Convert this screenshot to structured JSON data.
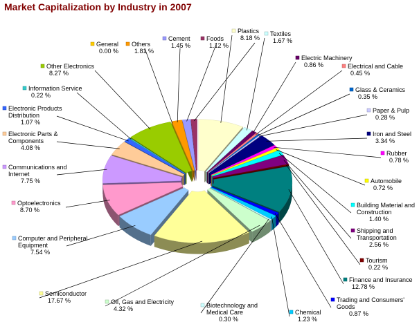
{
  "chart_data": {
    "type": "pie",
    "title": "Market Capitalization by Industry in 2007",
    "title_color": "#800000",
    "three_d": true,
    "legend": "none",
    "slices": [
      {
        "name": [
          "Plastics"
        ],
        "value": "8.18 %",
        "pct": 8.18,
        "color": "#ffffcc"
      },
      {
        "name": [
          "Textiles"
        ],
        "value": "1.67 %",
        "pct": 1.67,
        "color": "#ccffff"
      },
      {
        "name": [
          "Electric Machinery"
        ],
        "value": "0.86 %",
        "pct": 0.86,
        "color": "#660066"
      },
      {
        "name": [
          "Electrical and Cable"
        ],
        "value": "0.45 %",
        "pct": 0.45,
        "color": "#ff8080"
      },
      {
        "name": [
          "Glass & Ceramics"
        ],
        "value": "0.35 %",
        "pct": 0.35,
        "color": "#0066cc"
      },
      {
        "name": [
          "Paper & Pulp"
        ],
        "value": "0.28 %",
        "pct": 0.28,
        "color": "#ccccff"
      },
      {
        "name": [
          "Iron and Steel"
        ],
        "value": "3.34 %",
        "pct": 3.34,
        "color": "#000080"
      },
      {
        "name": [
          "Rubber"
        ],
        "value": "0.78 %",
        "pct": 0.78,
        "color": "#ff00ff"
      },
      {
        "name": [
          "Automobile"
        ],
        "value": "0.72 %",
        "pct": 0.72,
        "color": "#ffff00"
      },
      {
        "name": [
          "Building Material and",
          "Construction"
        ],
        "value": "1.40 %",
        "pct": 1.4,
        "color": "#00ffff"
      },
      {
        "name": [
          "Shipping and",
          "Transportation"
        ],
        "value": "2.56 %",
        "pct": 2.56,
        "color": "#800080"
      },
      {
        "name": [
          "Tourism"
        ],
        "value": "0.22 %",
        "pct": 0.22,
        "color": "#800000"
      },
      {
        "name": [
          "Finance and Insurance"
        ],
        "value": "12.78 %",
        "pct": 12.78,
        "color": "#008080"
      },
      {
        "name": [
          "Trading and Consumers'",
          "Goods"
        ],
        "value": "0.87 %",
        "pct": 0.87,
        "color": "#0000ff"
      },
      {
        "name": [
          "Chemical"
        ],
        "value": "1.23 %",
        "pct": 1.23,
        "color": "#00ccff"
      },
      {
        "name": [
          "Biotechnology and",
          "Medical Care"
        ],
        "value": "0.30 %",
        "pct": 0.3,
        "color": "#ccffff"
      },
      {
        "name": [
          "Oil, Gas and Electricity"
        ],
        "value": "4.32 %",
        "pct": 4.32,
        "color": "#ccffcc"
      },
      {
        "name": [
          "Semiconductor"
        ],
        "value": "17.67 %",
        "pct": 17.67,
        "color": "#ffff99"
      },
      {
        "name": [
          "Computer and Peripheral",
          "Equipment"
        ],
        "value": "7.54 %",
        "pct": 7.54,
        "color": "#99ccff"
      },
      {
        "name": [
          "Optoelectronics"
        ],
        "value": "8.70 %",
        "pct": 8.7,
        "color": "#ff99cc"
      },
      {
        "name": [
          "Communications and",
          "Internet"
        ],
        "value": "7.75 %",
        "pct": 7.75,
        "color": "#cc99ff"
      },
      {
        "name": [
          "Electronic Parts &",
          "Components"
        ],
        "value": "4.08 %",
        "pct": 4.08,
        "color": "#ffcc99"
      },
      {
        "name": [
          "Electronic Products",
          "Distribution"
        ],
        "value": "1.07 %",
        "pct": 1.07,
        "color": "#3366ff"
      },
      {
        "name": [
          "Information Service"
        ],
        "value": "0.22 %",
        "pct": 0.22,
        "color": "#33cccc"
      },
      {
        "name": [
          "Other Electronics"
        ],
        "value": "8.27 %",
        "pct": 8.27,
        "color": "#99cc00"
      },
      {
        "name": [
          "General"
        ],
        "value": "0.00 %",
        "pct": 0.0,
        "color": "#ffcc00"
      },
      {
        "name": [
          "Others"
        ],
        "value": "1.81 %",
        "pct": 1.81,
        "color": "#ff9900"
      },
      {
        "name": [
          "Cement"
        ],
        "value": "1.45 %",
        "pct": 1.45,
        "color": "#9999ff"
      },
      {
        "name": [
          "Foods"
        ],
        "value": "1.12 %",
        "pct": 1.12,
        "color": "#993366"
      }
    ]
  }
}
